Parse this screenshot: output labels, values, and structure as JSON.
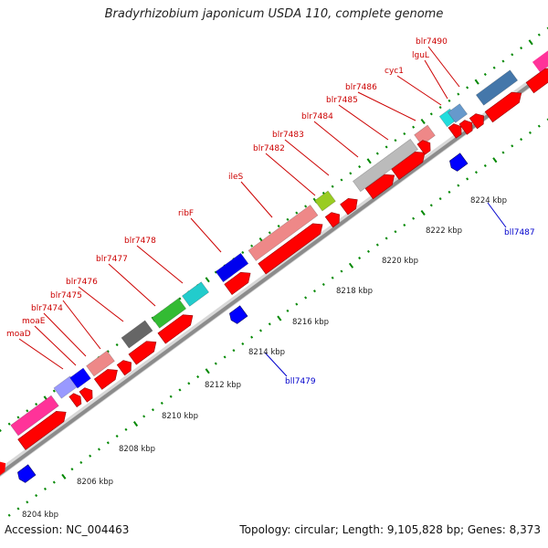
{
  "title": "Bradyrhizobium japonicum USDA 110, complete genome",
  "footer": {
    "accession_label": "Accession:",
    "accession": "NC_004463",
    "topology_label": "Topology:",
    "topology": "circular",
    "length_label": "Length:",
    "length": "9,105,828 bp",
    "genes_label": "Genes:",
    "genes": "8,373"
  },
  "colors": {
    "forward_label": "#cc0000",
    "reverse_label": "#0000cc",
    "forward_cds": "#ff0000",
    "reverse_cds": "#0000ff",
    "backbone": "#999999",
    "ticks": "#008800"
  },
  "kbp_ticks": [
    "8204 kbp",
    "8206 kbp",
    "8208 kbp",
    "8210 kbp",
    "8212 kbp",
    "8214 kbp",
    "8216 kbp",
    "8218 kbp",
    "8220 kbp",
    "8222 kbp",
    "8224 kbp"
  ],
  "forward_genes": [
    "moaD",
    "moaE",
    "blr7474",
    "blr7475",
    "blr7476",
    "blr7477",
    "blr7478",
    "ribF",
    "ileS",
    "blr7482",
    "blr7483",
    "blr7484",
    "blr7485",
    "blr7486",
    "cyc1",
    "lguL",
    "blr7490"
  ],
  "reverse_genes": [
    "bll7479",
    "bll7487"
  ],
  "category_colors": [
    "#ff3399",
    "#9999ff",
    "#0000ff",
    "#ee8888",
    "#666666",
    "#33bb33",
    "#22cccc",
    "#0000ee",
    "#ee8888",
    "#99cc22",
    "#bbbbbb",
    "#ee8888",
    "#22dddd",
    "#6699cc",
    "#4477aa"
  ]
}
